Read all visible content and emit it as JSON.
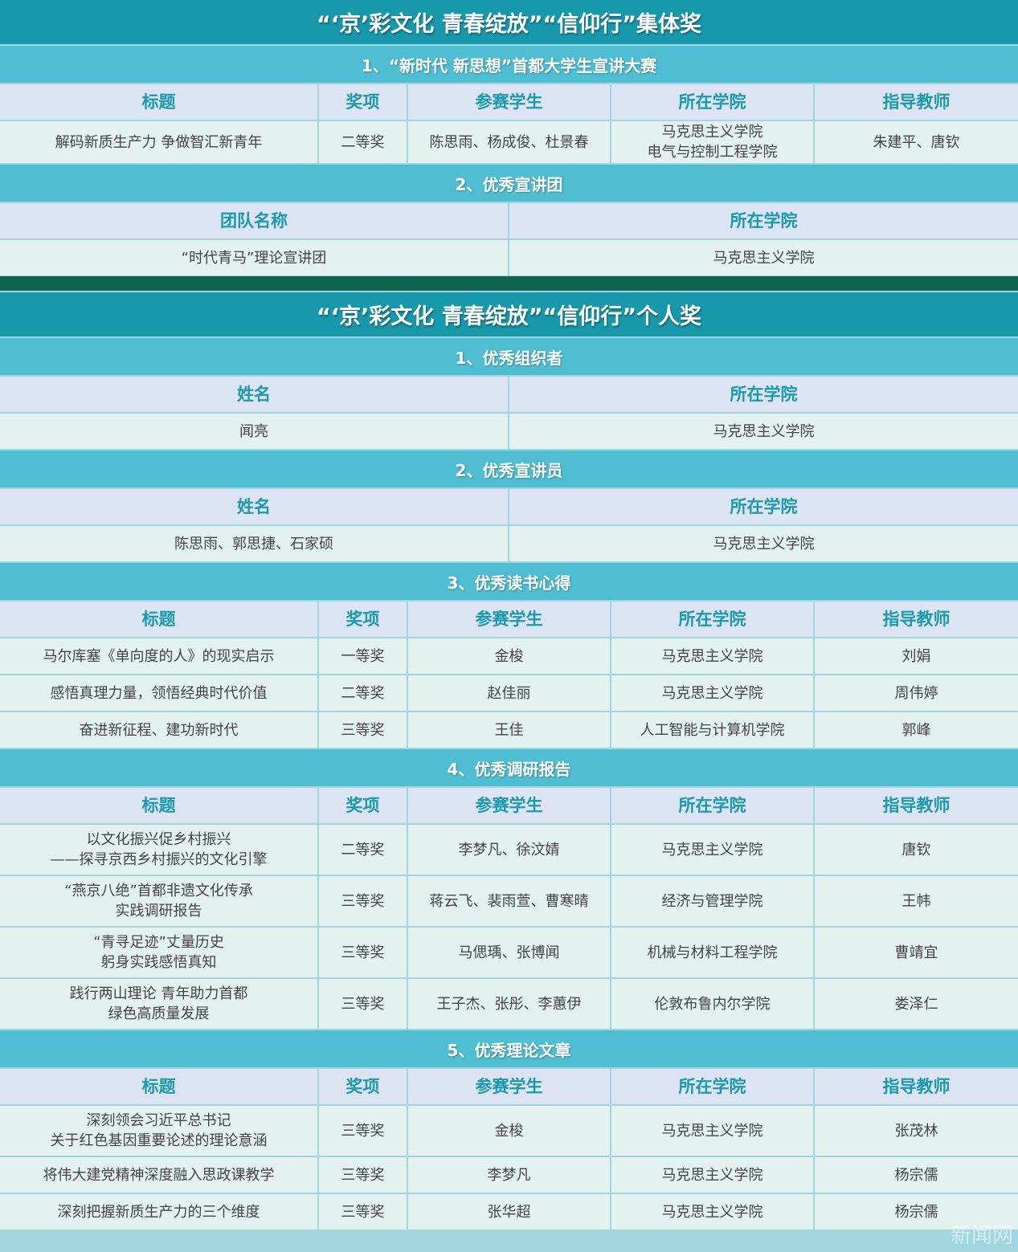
{
  "blocks": [
    {
      "type": "title",
      "text": "“‘京’彩文化  青春绽放”“信仰行”集体奖"
    },
    {
      "type": "section",
      "text": "1、“新时代 新思想”首都大学生宣讲大赛",
      "headers": [
        "标题",
        "奖项",
        "参赛学生",
        "所在学院",
        "指导教师"
      ],
      "rows": [
        [
          "解码新质生产力 争做智汇新青年",
          "二等奖",
          "陈思雨、杨成俊、杜景春",
          "马克思主义学院\n电气与控制工程学院",
          "朱建平、唐钦"
        ]
      ]
    },
    {
      "type": "section",
      "text": "2、优秀宣讲团",
      "headers": [
        "团队名称",
        "所在学院"
      ],
      "rows": [
        [
          "“时代青马”理论宣讲团",
          "马克思主义学院"
        ]
      ]
    },
    {
      "type": "band"
    },
    {
      "type": "title",
      "text": "“‘京’彩文化 青春绽放”“信仰行”个人奖"
    },
    {
      "type": "section",
      "text": "1、优秀组织者",
      "headers": [
        "姓名",
        "所在学院"
      ],
      "rows": [
        [
          "闻亮",
          "马克思主义学院"
        ]
      ]
    },
    {
      "type": "section",
      "text": "2、优秀宣讲员",
      "headers": [
        "姓名",
        "所在学院"
      ],
      "rows": [
        [
          "陈思雨、郭思捷、石家硕",
          "马克思主义学院"
        ]
      ]
    },
    {
      "type": "section",
      "text": "3、优秀读书心得",
      "headers": [
        "标题",
        "奖项",
        "参赛学生",
        "所在学院",
        "指导教师"
      ],
      "rows": [
        [
          "马尔库塞《单向度的人》的现实启示",
          "一等奖",
          "金梭",
          "马克思主义学院",
          "刘娟"
        ],
        [
          "感悟真理力量，领悟经典时代价值",
          "二等奖",
          "赵佳丽",
          "马克思主义学院",
          "周伟婷"
        ],
        [
          "奋进新征程、建功新时代",
          "三等奖",
          "王佳",
          "人工智能与计算机学院",
          "郭峰"
        ]
      ]
    },
    {
      "type": "section",
      "text": "4、优秀调研报告",
      "headers": [
        "标题",
        "奖项",
        "参赛学生",
        "所在学院",
        "指导教师"
      ],
      "rows": [
        [
          "以文化振兴促乡村振兴\n——探寻京西乡村振兴的文化引擎",
          "二等奖",
          "李梦凡、徐汶婧",
          "马克思主义学院",
          "唐钦"
        ],
        [
          "“燕京八绝”首都非遗文化传承\n实践调研报告",
          "三等奖",
          "蒋云飞、裴雨萱、曹寒晴",
          "经济与管理学院",
          "王帏"
        ],
        [
          "“青寻足迹”丈量历史\n躬身实践感悟真知",
          "三等奖",
          "马偲瑀、张博闻",
          "机械与材料工程学院",
          "曹靖宜"
        ],
        [
          "践行两山理论 青年助力首都\n绿色高质量发展",
          "三等奖",
          "王子杰、张彤、李蕙伊",
          "伦敦布鲁内尔学院",
          "娄泽仁"
        ]
      ]
    },
    {
      "type": "section",
      "text": "5、优秀理论文章",
      "headers": [
        "标题",
        "奖项",
        "参赛学生",
        "所在学院",
        "指导教师"
      ],
      "rows": [
        [
          "深刻领会习近平总书记\n关于红色基因重要论述的理论意涵",
          "三等奖",
          "金梭",
          "马克思主义学院",
          "张茂林"
        ],
        [
          "将伟大建党精神深度融入思政课教学",
          "三等奖",
          "李梦凡",
          "马克思主义学院",
          "杨宗儒"
        ],
        [
          "深刻把握新质生产力的三个维度",
          "三等奖",
          "张华超",
          "马克思主义学院",
          "杨宗儒"
        ]
      ]
    }
  ],
  "watermark": "新闻网",
  "colors": {
    "title": "#1899ab",
    "section": "#50bed2",
    "header_bg": "#dce4f4",
    "header_text": "#1a9aab",
    "cell_bg": "#e3f1ef",
    "band": "#0e654f"
  }
}
